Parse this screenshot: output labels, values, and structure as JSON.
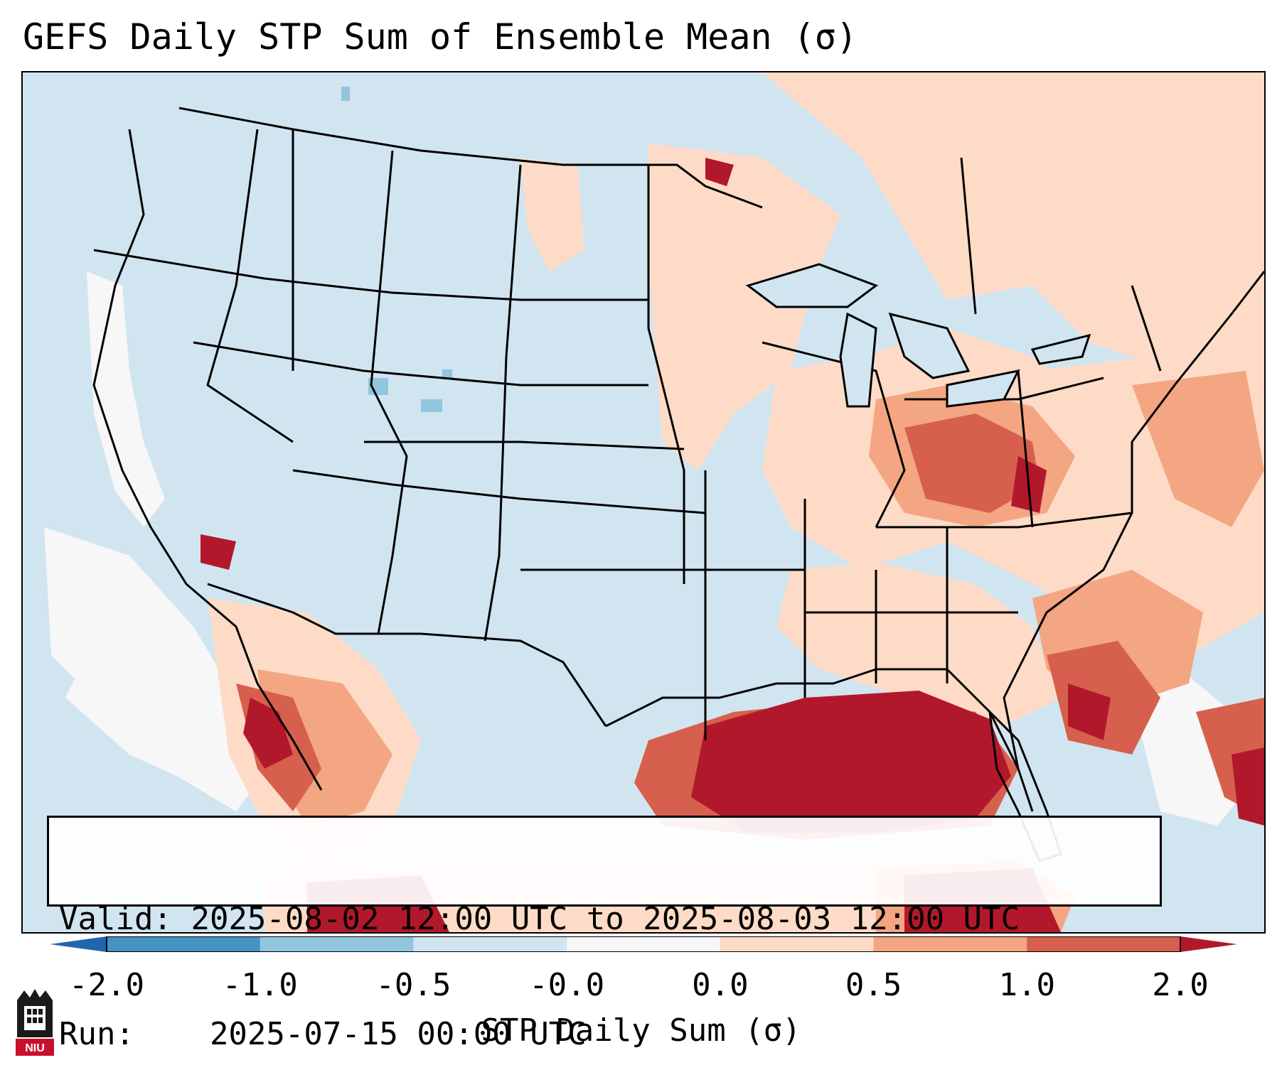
{
  "title": "GEFS Daily STP Sum of Ensemble Mean (σ)",
  "info": {
    "valid_label": "Valid:",
    "valid_text": "2025-08-02 12:00 UTC to 2025-08-03 12:00 UTC",
    "run_label": "Run:",
    "run_text": "2025-07-15 00:00 UTC"
  },
  "colorbar": {
    "label": "STP Daily Sum (σ)",
    "bins": [
      {
        "from": "-2.0",
        "to": "-1.0",
        "color": "#4393c3"
      },
      {
        "from": "-1.0",
        "to": "-0.5",
        "color": "#92c5de"
      },
      {
        "from": "-0.5",
        "to": "-0.0",
        "color": "#d1e5f0"
      },
      {
        "from": "-0.0",
        "to": "0.0",
        "color": "#f7f7f7"
      },
      {
        "from": "0.0",
        "to": "0.5",
        "color": "#fddbc7"
      },
      {
        "from": "0.5",
        "to": "1.0",
        "color": "#f4a582"
      },
      {
        "from": "1.0",
        "to": "2.0",
        "color": "#d6604d"
      }
    ],
    "under_color": "#2166ac",
    "over_color": "#b2182b",
    "ticks": [
      "-2.0",
      "-1.0",
      "-0.5",
      "-0.0",
      "0.0",
      "0.5",
      "1.0",
      "2.0"
    ]
  },
  "colors": {
    "background": "#d1e5f0",
    "neutral": "#f7f7f7",
    "light_pos": "#fddbc7",
    "mid_pos": "#f4a582",
    "strong_pos": "#d6604d",
    "max_pos": "#b2182b",
    "light_neg": "#92c5de",
    "borders": "#000000"
  },
  "logo": {
    "text": "NIU"
  }
}
